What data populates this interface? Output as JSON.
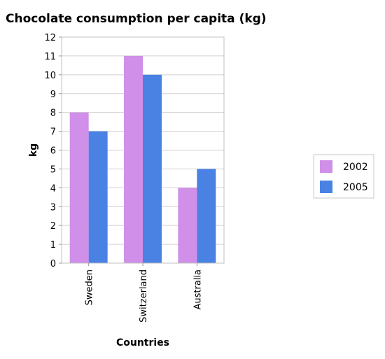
{
  "chart_data": {
    "type": "bar",
    "title": "Chocolate consumption per capita (kg)",
    "xlabel": "Countries",
    "ylabel": "kg",
    "categories": [
      "Sweden",
      "Switzerland",
      "Australia"
    ],
    "series": [
      {
        "name": "2002",
        "values": [
          8,
          11,
          4
        ],
        "color": "#d08fe8"
      },
      {
        "name": "2005",
        "values": [
          7,
          10,
          5
        ],
        "color": "#4a82e4"
      }
    ],
    "ylim": [
      0,
      12
    ],
    "yticks": [
      "0",
      "1",
      "2",
      "3",
      "4",
      "5",
      "6",
      "7",
      "8",
      "9",
      "10",
      "11",
      "12"
    ],
    "grid": true,
    "legend_position": "right"
  }
}
